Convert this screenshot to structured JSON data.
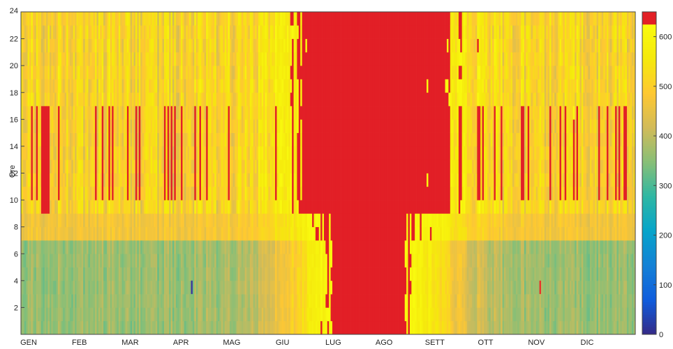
{
  "chart_data": {
    "type": "heatmap",
    "title": "",
    "xlabel": "",
    "ylabel": "Ore",
    "x_categories": [
      "GEN",
      "FEB",
      "MAR",
      "APR",
      "MAG",
      "GIU",
      "LUG",
      "AGO",
      "SETT",
      "OTT",
      "NOV",
      "DIC"
    ],
    "x_days": 365,
    "y_range": [
      0,
      24
    ],
    "y_ticks": [
      2,
      4,
      6,
      8,
      10,
      12,
      14,
      16,
      18,
      20,
      22
    ],
    "y_tick_labels": [
      "2",
      "4",
      "6",
      "8",
      "10",
      "12",
      "14",
      "16",
      "18",
      "20",
      "22"
    ],
    "y_top_label": "24",
    "colorbar": {
      "range": [
        0,
        650
      ],
      "ticks": [
        0,
        100,
        200,
        300,
        400,
        500,
        600
      ],
      "tick_labels": [
        "0",
        "100",
        "200",
        "300",
        "400",
        "500",
        "600"
      ],
      "colormap": "parula",
      "stops": [
        "#352a87",
        "#0f5cdd",
        "#1481d6",
        "#06a4ca",
        "#2eb7a4",
        "#87bf77",
        "#d1bb59",
        "#fec832",
        "#f5e90c",
        "#f9fb0e",
        "#e21f26"
      ]
    },
    "annotations": [
      {
        "kind": "min-marker",
        "day": 101,
        "hour_range": [
          3,
          4
        ],
        "color": "#3a3a9e"
      },
      {
        "kind": "max-marker",
        "day": 308,
        "hour_range": [
          3,
          4
        ],
        "color": "#e8332b"
      }
    ]
  }
}
